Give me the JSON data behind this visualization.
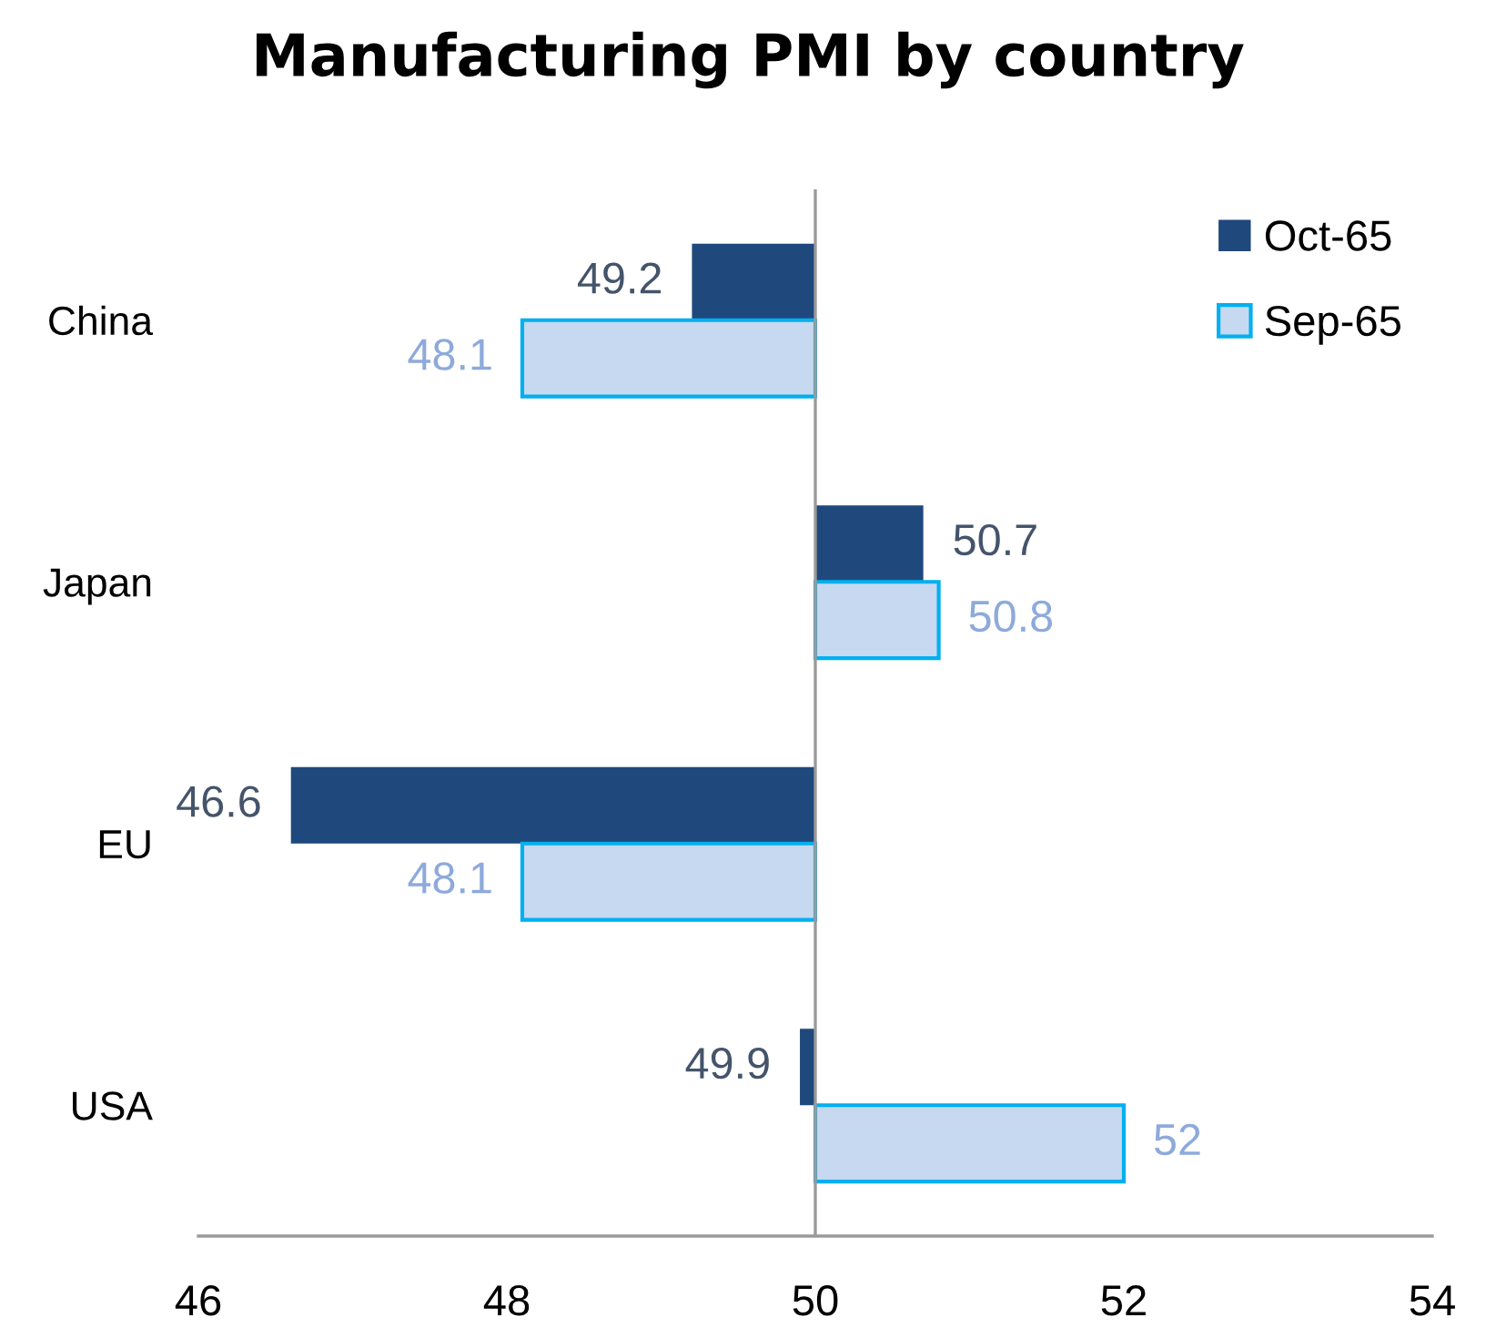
{
  "chart_data": {
    "type": "bar",
    "title": "Manufacturing PMI by country",
    "orientation": "horizontal",
    "categories": [
      "China",
      "Japan",
      "EU",
      "USA"
    ],
    "series": [
      {
        "name": "Oct-65",
        "color": "#1f497d",
        "base": [
          50,
          50,
          50,
          50
        ],
        "values": [
          -0.8,
          0.7,
          -3.4,
          -0.1
        ],
        "value_labels": [
          "49.2",
          "50.7",
          "46.6",
          "49.9"
        ]
      },
      {
        "name": "Sep-65",
        "color": "#c6d9f1",
        "base": [
          50,
          50,
          50,
          50
        ],
        "values": [
          -1.9,
          0.8,
          -1.9,
          2
        ],
        "value_labels": [
          "48.1",
          "50.8",
          "48.1",
          "52"
        ]
      }
    ],
    "xlim": [
      46,
      54
    ],
    "xticks": [
      46,
      48,
      50,
      52,
      54
    ],
    "ref_lines": [
      {
        "axis": "x",
        "value": 50,
        "color": "#9a9a9a"
      }
    ],
    "legend": "top right",
    "grid": false
  }
}
